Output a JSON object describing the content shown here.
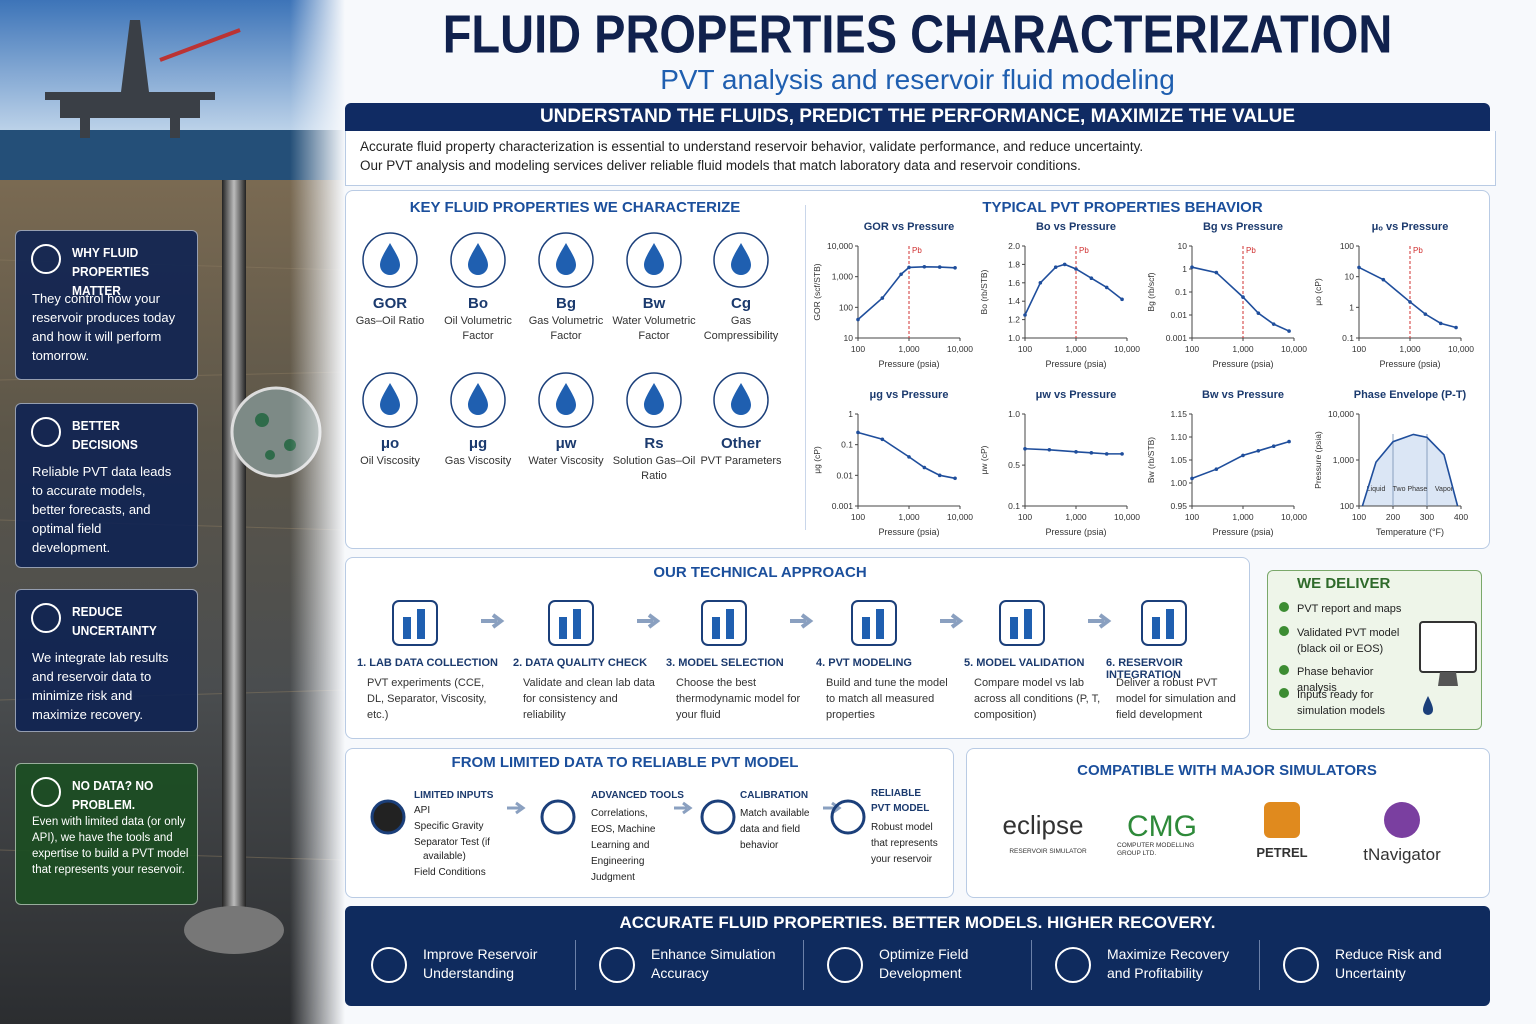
{
  "header": {
    "title": "FLUID PROPERTIES CHARACTERIZATION",
    "subtitle": "PVT analysis and reservoir fluid modeling"
  },
  "banner": {
    "heading": "UNDERSTAND THE FLUIDS, PREDICT THE PERFORMANCE, MAXIMIZE THE VALUE",
    "text": [
      "Accurate fluid property characterization is essential to understand reservoir behavior, validate performance, and reduce uncertainty.",
      "Our PVT analysis and modeling services deliver reliable fluid models that match laboratory data and reservoir conditions."
    ]
  },
  "sidebar": [
    {
      "title": "WHY FLUID PROPERTIES MATTER",
      "text": "They control how your reservoir produces today and how it will perform tomorrow."
    },
    {
      "title": "BETTER DECISIONS",
      "text": "Reliable PVT data leads to accurate models, better forecasts, and optimal field development."
    },
    {
      "title": "REDUCE UNCERTAINTY",
      "text": "We integrate lab results and reservoir data to minimize risk and maximize recovery."
    },
    {
      "title": "NO DATA? NO PROBLEM.",
      "text": "Even with limited data (or only API), we have the tools and expertise to build a PVT model that represents your reservoir."
    }
  ],
  "properties": {
    "heading": "KEY FLUID PROPERTIES WE CHARACTERIZE",
    "items": [
      {
        "symbol": "GOR",
        "label": "Gas–Oil Ratio"
      },
      {
        "symbol": "Bo",
        "label": "Oil Volumetric Factor"
      },
      {
        "symbol": "Bg",
        "label": "Gas Volumetric Factor"
      },
      {
        "symbol": "Bw",
        "label": "Water Volumetric Factor"
      },
      {
        "symbol": "Cg",
        "label": "Gas Compressibility"
      },
      {
        "symbol": "μo",
        "label": "Oil Viscosity"
      },
      {
        "symbol": "μg",
        "label": "Gas Viscosity"
      },
      {
        "symbol": "μw",
        "label": "Water Viscosity"
      },
      {
        "symbol": "Rs",
        "label": "Solution Gas–Oil Ratio"
      },
      {
        "symbol": "Other",
        "label": "PVT Parameters"
      }
    ]
  },
  "pvt_behavior": {
    "heading": "TYPICAL PVT PROPERTIES BEHAVIOR",
    "charts": [
      {
        "type": "line",
        "title": "GOR vs Pressure",
        "xlabel": "Pressure (psia)",
        "ylabel": "GOR (scf/STB)",
        "color": "#1f4e9c",
        "xlog": true,
        "ylog": true,
        "x": [
          100,
          300,
          700,
          1000,
          2000,
          4000,
          8000
        ],
        "values": [
          40,
          200,
          1200,
          2000,
          2100,
          2050,
          1950
        ],
        "xlim": [
          100,
          10000
        ],
        "ylim": [
          10,
          10000
        ],
        "xticks": [
          100,
          {
            "value": 1000,
            "label": "1,000"
          },
          {
            "value": 10000,
            "label": "10,000"
          }
        ],
        "yticks": [
          10,
          100,
          {
            "value": 1000,
            "label": "1,000"
          },
          {
            "value": 10000,
            "label": "10,000"
          }
        ],
        "annotation": {
          "x": 1000,
          "text": "Pb"
        }
      },
      {
        "type": "line",
        "title": "Bo vs Pressure",
        "xlabel": "Pressure (psia)",
        "ylabel": "Bo (rb/STB)",
        "color": "#1f4e9c",
        "xlog": true,
        "ylog": false,
        "x": [
          100,
          200,
          400,
          600,
          1000,
          2000,
          4000,
          8000
        ],
        "values": [
          1.25,
          1.6,
          1.77,
          1.8,
          1.75,
          1.65,
          1.55,
          1.42
        ],
        "xlim": [
          100,
          10000
        ],
        "ylim": [
          1.0,
          2.0
        ],
        "xticks": [
          100,
          {
            "value": 1000,
            "label": "1,000"
          },
          {
            "value": 10000,
            "label": "10,000"
          }
        ],
        "yticks": [
          {
            "value": 1.0,
            "label": "1.0"
          },
          1.2,
          1.4,
          1.6,
          1.8,
          {
            "value": 2.0,
            "label": "2.0"
          }
        ],
        "annotation": {
          "x": 1000,
          "text": "Pb"
        }
      },
      {
        "type": "line",
        "title": "Bg vs Pressure",
        "xlabel": "Pressure (psia)",
        "ylabel": "Bg (rb/scf)",
        "color": "#1f4e9c",
        "xlog": true,
        "ylog": true,
        "x": [
          100,
          300,
          1000,
          2000,
          4000,
          8000
        ],
        "values": [
          1.2,
          0.7,
          0.06,
          0.012,
          0.004,
          0.002
        ],
        "xlim": [
          100,
          10000
        ],
        "ylim": [
          0.001,
          10
        ],
        "xticks": [
          100,
          {
            "value": 1000,
            "label": "1,000"
          },
          {
            "value": 10000,
            "label": "10,000"
          }
        ],
        "yticks": [
          0.001,
          0.01,
          0.1,
          1,
          10
        ],
        "annotation": {
          "x": 1000,
          "text": "Pb"
        }
      },
      {
        "type": "line",
        "title": "μₒ vs Pressure",
        "xlabel": "Pressure (psia)",
        "ylabel": "μo (cP)",
        "color": "#1f4e9c",
        "xlog": true,
        "ylog": true,
        "x": [
          100,
          300,
          1000,
          2000,
          4000,
          8000
        ],
        "values": [
          20,
          8,
          1.5,
          0.6,
          0.3,
          0.22
        ],
        "xlim": [
          100,
          10000
        ],
        "ylim": [
          0.1,
          100
        ],
        "xticks": [
          100,
          {
            "value": 1000,
            "label": "1,000"
          },
          {
            "value": 10000,
            "label": "10,000"
          }
        ],
        "yticks": [
          0.1,
          1,
          10,
          100
        ],
        "annotation": {
          "x": 1000,
          "text": "Pb"
        }
      },
      {
        "type": "line",
        "title": "μg vs Pressure",
        "xlabel": "Pressure (psia)",
        "ylabel": "μg (cP)",
        "color": "#1f4e9c",
        "xlog": true,
        "ylog": true,
        "x": [
          100,
          300,
          1000,
          2000,
          4000,
          8000
        ],
        "values": [
          0.25,
          0.15,
          0.04,
          0.018,
          0.01,
          0.008
        ],
        "xlim": [
          100,
          10000
        ],
        "ylim": [
          0.001,
          1
        ],
        "xticks": [
          100,
          {
            "value": 1000,
            "label": "1,000"
          },
          {
            "value": 10000,
            "label": "10,000"
          }
        ],
        "yticks": [
          0.001,
          0.01,
          0.1,
          1
        ]
      },
      {
        "type": "line",
        "title": "μw vs Pressure",
        "xlabel": "Pressure (psia)",
        "ylabel": "μw (cP)",
        "color": "#1f4e9c",
        "xlog": true,
        "ylog": false,
        "x": [
          100,
          300,
          1000,
          2000,
          4000,
          8000
        ],
        "values": [
          0.66,
          0.65,
          0.63,
          0.62,
          0.61,
          0.61
        ],
        "xlim": [
          100,
          10000
        ],
        "ylim": [
          0.1,
          1.0
        ],
        "xticks": [
          100,
          {
            "value": 1000,
            "label": "1,000"
          },
          {
            "value": 10000,
            "label": "10,000"
          }
        ],
        "yticks": [
          0.1,
          0.5,
          {
            "value": 1.0,
            "label": "1.0"
          }
        ]
      },
      {
        "type": "line",
        "title": "Bw vs Pressure",
        "xlabel": "Pressure (psia)",
        "ylabel": "Bw (rb/STB)",
        "color": "#1f4e9c",
        "xlog": true,
        "ylog": false,
        "x": [
          100,
          300,
          1000,
          2000,
          4000,
          8000
        ],
        "values": [
          1.01,
          1.03,
          1.06,
          1.07,
          1.08,
          1.09
        ],
        "xlim": [
          100,
          10000
        ],
        "ylim": [
          0.95,
          1.15
        ],
        "xticks": [
          100,
          {
            "value": 1000,
            "label": "1,000"
          },
          {
            "value": 10000,
            "label": "10,000"
          }
        ],
        "yticks": [
          0.95,
          {
            "value": 1.0,
            "label": "1.00"
          },
          1.05,
          {
            "value": 1.1,
            "label": "1.10"
          },
          1.15
        ]
      },
      {
        "type": "envelope",
        "title": "Phase Envelope (P-T)",
        "xlabel": "Temperature (°F)",
        "ylabel": "Pressure (psia)",
        "color": "#1f4e9c",
        "xlog": false,
        "ylog": true,
        "x": [
          110,
          150,
          200,
          260,
          300,
          350,
          390
        ],
        "values": [
          100,
          900,
          2500,
          3600,
          3100,
          1300,
          100
        ],
        "xlim": [
          100,
          400
        ],
        "ylim": [
          100,
          10000
        ],
        "xticks": [
          100,
          200,
          300,
          400
        ],
        "yticks": [
          100,
          {
            "value": 1000,
            "label": "1,000"
          },
          {
            "value": 10000,
            "label": "10,000"
          }
        ],
        "dividers": [
          200,
          300
        ],
        "regions": [
          "Liquid",
          "Two Phase",
          "Vapor"
        ]
      }
    ]
  },
  "approach": {
    "heading": "OUR TECHNICAL APPROACH",
    "steps": [
      {
        "title": "1. LAB DATA COLLECTION",
        "text": "PVT experiments (CCE, DL, Separator, Viscosity, etc.)"
      },
      {
        "title": "2. DATA QUALITY CHECK",
        "text": "Validate and clean lab data for consistency and reliability"
      },
      {
        "title": "3. MODEL SELECTION",
        "text": "Choose the best thermodynamic model for your fluid"
      },
      {
        "title": "4. PVT MODELING",
        "text": "Build and tune the model to match all measured properties"
      },
      {
        "title": "5. MODEL VALIDATION",
        "text": "Compare model vs lab across all conditions (P, T, composition)"
      },
      {
        "title": "6. RESERVOIR INTEGRATION",
        "text": "Deliver a robust PVT model for simulation and field development"
      }
    ]
  },
  "deliver": {
    "heading": "WE DELIVER",
    "items": [
      "PVT report and maps",
      "Validated PVT model (black oil or EOS)",
      "Phase behavior analysis",
      "Inputs ready for simulation models"
    ]
  },
  "limited": {
    "heading": "FROM LIMITED DATA TO RELIABLE PVT MODEL",
    "steps": [
      {
        "title": "LIMITED INPUTS",
        "items": [
          "API",
          "Specific Gravity",
          "Separator Test (if available)",
          "Field Conditions"
        ]
      },
      {
        "title": "ADVANCED TOOLS",
        "text": "Correlations, EOS, Machine Learning and Engineering Judgment"
      },
      {
        "title": "CALIBRATION",
        "text": "Match available data and field behavior"
      },
      {
        "title": "RELIABLE PVT MODEL",
        "text": "Robust model that represents your reservoir"
      }
    ]
  },
  "simulators": {
    "heading": "COMPATIBLE WITH MAJOR SIMULATORS",
    "items": [
      {
        "name": "eclipse",
        "subtitle": "RESERVOIR SIMULATOR"
      },
      {
        "name": "CMG",
        "subtitle": "COMPUTER MODELLING GROUP LTD."
      },
      {
        "name": "PETREL"
      },
      {
        "name": "tNavigator"
      }
    ]
  },
  "footer": {
    "heading": "ACCURATE FLUID PROPERTIES. BETTER MODELS. HIGHER RECOVERY.",
    "items": [
      "Improve Reservoir Understanding",
      "Enhance Simulation Accuracy",
      "Optimize Field Development",
      "Maximize Recovery and Profitability",
      "Reduce Risk and Uncertainty"
    ]
  }
}
